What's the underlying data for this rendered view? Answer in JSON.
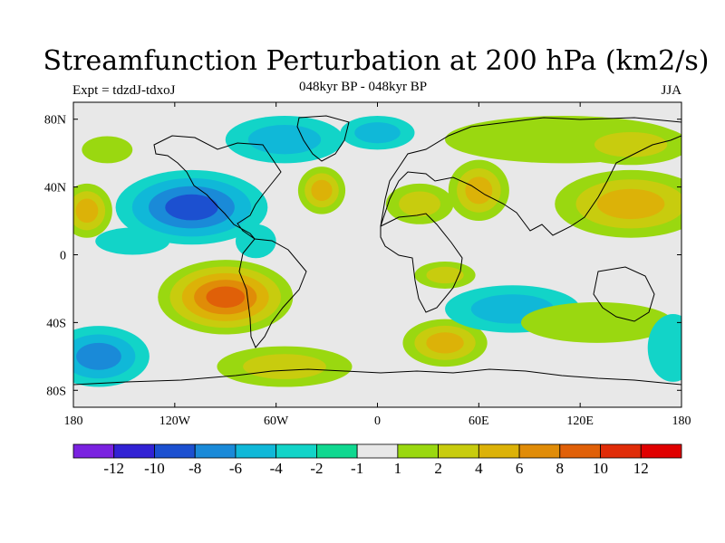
{
  "title": "Streamfunction Perturbation at 200 hPa (km2/s)",
  "subtitle": "048kyr BP - 048kyr BP",
  "experiment_label": "Expt = tdzdJ-tdxoJ",
  "season": "JJA",
  "map": {
    "longitude_labels": [
      "180",
      "120W",
      "60W",
      "0",
      "60E",
      "120E",
      "180"
    ],
    "longitude_values": [
      -180,
      -120,
      -60,
      0,
      60,
      120,
      180
    ],
    "latitude_labels": [
      "80N",
      "40N",
      "0",
      "40S",
      "80S"
    ],
    "latitude_values": [
      80,
      40,
      0,
      -40,
      -80
    ],
    "background_color": "#e8e8e8",
    "anomalies": [
      {
        "lon": -110,
        "lat": 28,
        "rx": 45,
        "ry": 22,
        "levels": [
          -2,
          -4,
          -6,
          -8
        ]
      },
      {
        "lon": -72,
        "lat": 8,
        "rx": 12,
        "ry": 10,
        "levels": [
          -2
        ]
      },
      {
        "lon": -55,
        "lat": 68,
        "rx": 35,
        "ry": 14,
        "levels": [
          -2,
          -4
        ]
      },
      {
        "lon": 0,
        "lat": 72,
        "rx": 22,
        "ry": 10,
        "levels": [
          -2,
          -4
        ]
      },
      {
        "lon": 110,
        "lat": 68,
        "rx": 70,
        "ry": 14,
        "levels": [
          1
        ]
      },
      {
        "lon": 150,
        "lat": 65,
        "rx": 35,
        "ry": 12,
        "levels": [
          1,
          2
        ]
      },
      {
        "lon": -160,
        "lat": 62,
        "rx": 15,
        "ry": 8,
        "levels": [
          1
        ]
      },
      {
        "lon": -33,
        "lat": 38,
        "rx": 14,
        "ry": 14,
        "levels": [
          1,
          2,
          4
        ]
      },
      {
        "lon": 25,
        "lat": 30,
        "rx": 20,
        "ry": 12,
        "levels": [
          1,
          2
        ]
      },
      {
        "lon": 60,
        "lat": 38,
        "rx": 18,
        "ry": 18,
        "levels": [
          1,
          2,
          4
        ]
      },
      {
        "lon": 150,
        "lat": 30,
        "rx": 45,
        "ry": 20,
        "levels": [
          1,
          2,
          4
        ]
      },
      {
        "lon": -172,
        "lat": 26,
        "rx": 15,
        "ry": 16,
        "levels": [
          1,
          2,
          4
        ]
      },
      {
        "lon": -145,
        "lat": 8,
        "rx": 22,
        "ry": 8,
        "levels": [
          -2
        ]
      },
      {
        "lon": -90,
        "lat": -25,
        "rx": 40,
        "ry": 22,
        "levels": [
          1,
          2,
          4,
          6,
          8
        ]
      },
      {
        "lon": -165,
        "lat": -60,
        "rx": 30,
        "ry": 18,
        "levels": [
          -2,
          -4,
          -6
        ]
      },
      {
        "lon": -55,
        "lat": -66,
        "rx": 40,
        "ry": 12,
        "levels": [
          1,
          2
        ]
      },
      {
        "lon": 40,
        "lat": -52,
        "rx": 25,
        "ry": 14,
        "levels": [
          1,
          2,
          4
        ]
      },
      {
        "lon": 40,
        "lat": -12,
        "rx": 18,
        "ry": 8,
        "levels": [
          1,
          2
        ]
      },
      {
        "lon": 80,
        "lat": -32,
        "rx": 40,
        "ry": 14,
        "levels": [
          -2,
          -4
        ]
      },
      {
        "lon": 130,
        "lat": -40,
        "rx": 45,
        "ry": 12,
        "levels": [
          1
        ]
      },
      {
        "lon": 175,
        "lat": -55,
        "rx": 15,
        "ry": 20,
        "levels": [
          -2
        ]
      }
    ]
  },
  "colorbar": {
    "colors": [
      "#7a22e0",
      "#3222d4",
      "#1c50d0",
      "#1a8ad8",
      "#10b8d8",
      "#12d4c8",
      "#10d890",
      "#e8e8e8",
      "#9ad810",
      "#c8cc0e",
      "#dcb208",
      "#e08c08",
      "#e06008",
      "#e02c08",
      "#e00000"
    ],
    "labels": [
      "-12",
      "-10",
      "-8",
      "-6",
      "-4",
      "-2",
      "-1",
      "1",
      "2",
      "4",
      "6",
      "8",
      "10",
      "12"
    ],
    "level_values": [
      -12,
      -10,
      -8,
      -6,
      -4,
      -2,
      -1,
      1,
      2,
      4,
      6,
      8,
      10,
      12
    ]
  }
}
